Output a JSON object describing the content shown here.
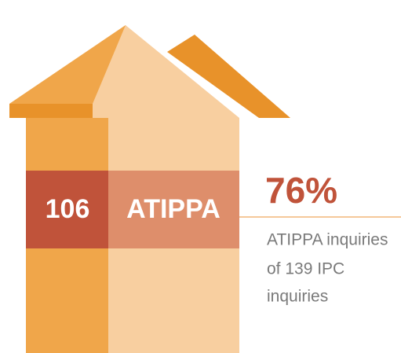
{
  "count": "106",
  "label": "ATIPPA",
  "percent": "76%",
  "description": [
    "ATIPPA inquiries",
    "of 139 IPC",
    "inquiries"
  ]
}
